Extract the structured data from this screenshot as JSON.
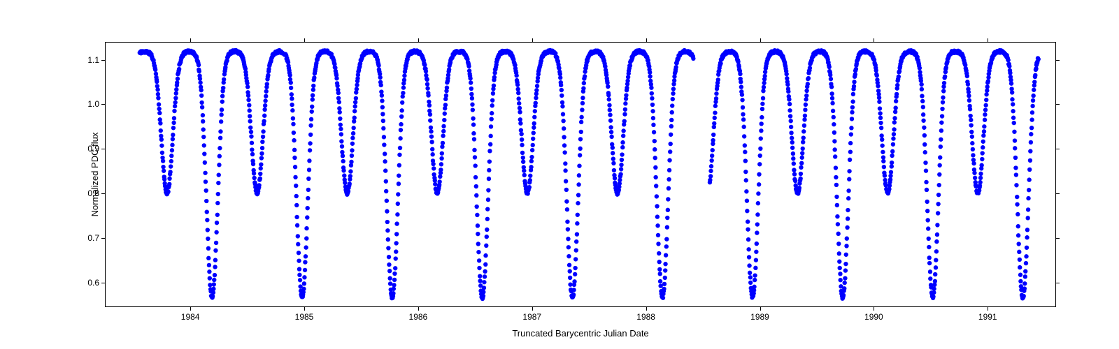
{
  "chart": {
    "type": "scatter",
    "xlabel": "Truncated Barycentric Julian Date",
    "ylabel": "Normalized PDC flux",
    "label_fontsize": 13,
    "tick_fontsize": 12,
    "xlim": [
      1983.25,
      1991.6
    ],
    "ylim": [
      0.545,
      1.14
    ],
    "xticks": [
      1984,
      1985,
      1986,
      1987,
      1988,
      1989,
      1990,
      1991
    ],
    "xtick_labels": [
      "1984",
      "1985",
      "1986",
      "1987",
      "1988",
      "1989",
      "1990",
      "1991"
    ],
    "yticks": [
      0.6,
      0.7,
      0.8,
      0.9,
      1.0,
      1.1
    ],
    "ytick_labels": [
      "0.6",
      "0.7",
      "0.8",
      "0.9",
      "1.0",
      "1.1"
    ],
    "background_color": "#ffffff",
    "border_color": "#000000",
    "marker_color": "#0000ff",
    "marker_size": 3.2,
    "data_start": 1983.55,
    "data_end": 1991.45,
    "period": 0.396,
    "shallow_depth": 0.8,
    "deep_depth": 0.565,
    "flux_max": 1.12,
    "flux_base": 1.08,
    "dip_width": 0.12,
    "scatter_amount": 0.006,
    "num_points": 2400,
    "gap_start": 1988.42,
    "gap_end": 1988.56
  }
}
